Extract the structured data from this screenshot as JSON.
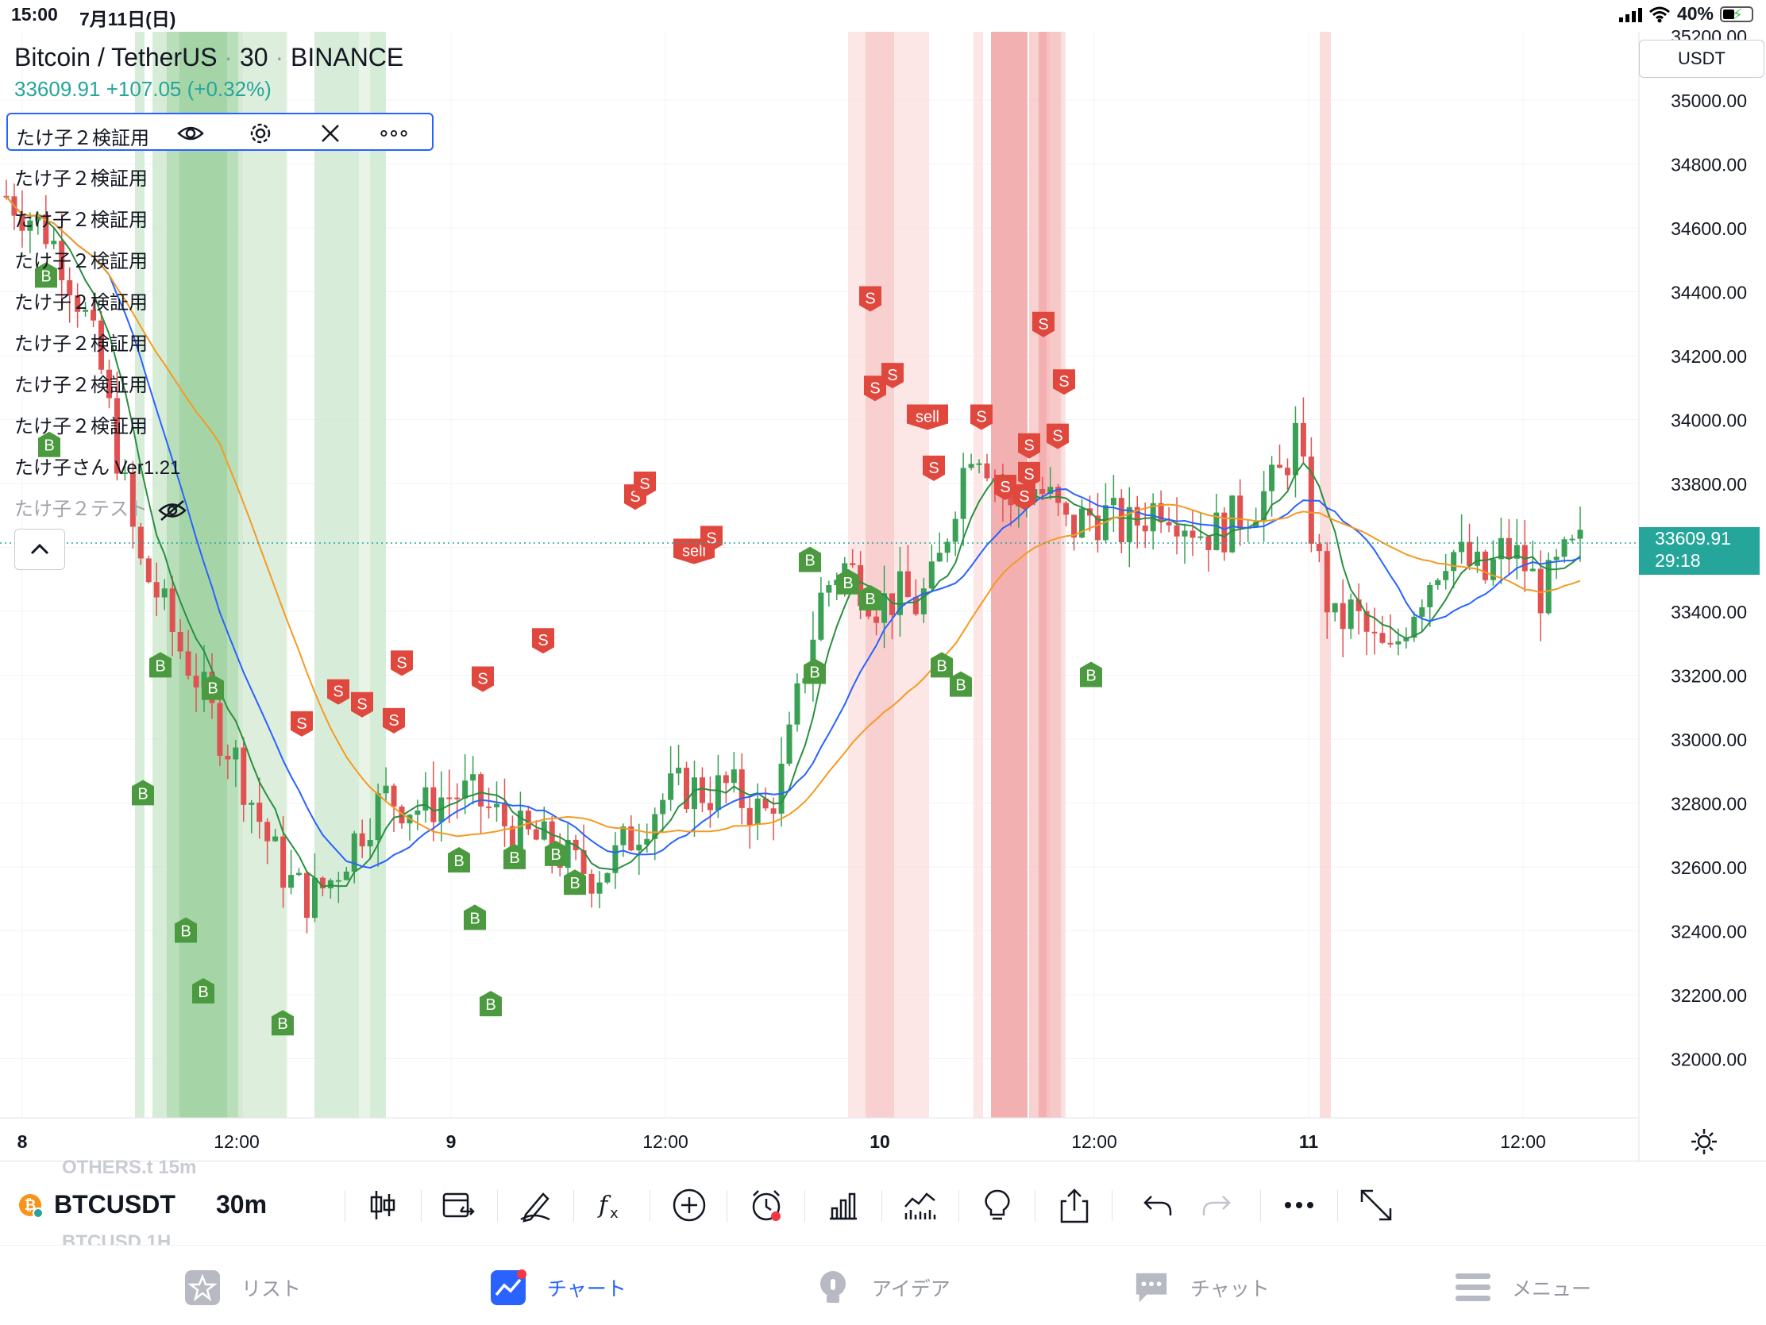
{
  "status_bar": {
    "time": "15:00",
    "date": "7月11日(日)",
    "battery": "40%"
  },
  "symbol_header": {
    "name": "Bitcoin / TetherUS",
    "interval": "30",
    "exchange": "BINANCE",
    "last_price": "33609.91",
    "change": "+107.05 (+0.32%)"
  },
  "indicators": {
    "selected": "たけ子２検証用",
    "rows": [
      "たけ子２検証用",
      "たけ子２検証用",
      "たけ子２検証用",
      "たけ子２検証用",
      "たけ子２検証用",
      "たけ子２検証用",
      "たけ子２検証用",
      "たけ子さん Ver1.21"
    ],
    "hidden_row": "たけ子２テスト"
  },
  "price_scale": {
    "currency": "USDT",
    "top_partial": "35200.00",
    "current_price": "33609.91",
    "countdown": "29:18"
  },
  "colors": {
    "up": "#26a69a",
    "candle_up": "#3aa055",
    "candle_down": "#e05252",
    "buy_bg": "#4c9a40",
    "sell_bg": "#e0473d",
    "ma_fast": "#2a8f3e",
    "ma_mid": "#2962ff",
    "ma_slow": "#f59a23",
    "accent": "#2962ff"
  },
  "toolbar": {
    "symbol": "BTCUSDT",
    "timeframe": "30m",
    "ghost_above": "OTHERS.t 15m",
    "ghost_below": "BTCUSD 1H"
  },
  "tabs": [
    {
      "label": "リスト",
      "icon": "star-icon"
    },
    {
      "label": "チャート",
      "icon": "chart-icon"
    },
    {
      "label": "アイデア",
      "icon": "lightbulb-icon"
    },
    {
      "label": "チャット",
      "icon": "chat-icon"
    },
    {
      "label": "メニュー",
      "icon": "menu-icon"
    }
  ],
  "chart_data": {
    "type": "candlestick",
    "y_range": [
      31900,
      35250
    ],
    "y_ticks": [
      "35000.00",
      "34800.00",
      "34600.00",
      "34400.00",
      "34200.00",
      "34000.00",
      "33800.00",
      "33600.00",
      "33400.00",
      "33200.00",
      "33000.00",
      "32800.00",
      "32600.00",
      "32400.00",
      "32200.00",
      "32000.00"
    ],
    "x_ticks": [
      "8",
      "12:00",
      "9",
      "12:00",
      "10",
      "12:00",
      "11",
      "12:00"
    ],
    "current_price": 33609.91,
    "close_path": [
      34700,
      34650,
      34600,
      34500,
      34350,
      34150,
      33850,
      33550,
      33450,
      33300,
      33200,
      33050,
      32950,
      32800,
      32650,
      32550,
      32500,
      32550,
      32650,
      32750,
      32820,
      32800,
      32780,
      32820,
      32830,
      32800,
      32750,
      32700,
      32680,
      32650,
      32600,
      32580,
      32620,
      32700,
      32780,
      32830,
      32850,
      32830,
      32850,
      32800,
      32760,
      32900,
      33200,
      33450,
      33550,
      33500,
      33420,
      33450,
      33420,
      33500,
      33750,
      33950,
      33850,
      33700,
      33800,
      33750,
      33650,
      33700,
      33700,
      33650,
      33700,
      33750,
      33700,
      33650,
      33650,
      33700,
      33750,
      33800,
      33950,
      33600,
      33350,
      33400,
      33300,
      33250,
      33400,
      33500,
      33600,
      33550,
      33500,
      33600,
      33550,
      33450,
      33550,
      33600
    ],
    "signals": [
      {
        "label": "B",
        "price": 34450
      },
      {
        "label": "B",
        "price": 33920
      },
      {
        "label": "B",
        "price": 33230
      },
      {
        "label": "B",
        "price": 33160
      },
      {
        "label": "B",
        "price": 32830
      },
      {
        "label": "B",
        "price": 32400
      },
      {
        "label": "B",
        "price": 32210
      },
      {
        "label": "B",
        "price": 32110
      },
      {
        "label": "S",
        "price": 33050
      },
      {
        "label": "S",
        "price": 33150
      },
      {
        "label": "S",
        "price": 33110
      },
      {
        "label": "S",
        "price": 33060
      },
      {
        "label": "S",
        "price": 33240
      },
      {
        "label": "B",
        "price": 32620
      },
      {
        "label": "S",
        "price": 33190
      },
      {
        "label": "B",
        "price": 32440
      },
      {
        "label": "B",
        "price": 32170
      },
      {
        "label": "S",
        "price": 33310
      },
      {
        "label": "B",
        "price": 32630
      },
      {
        "label": "B",
        "price": 32640
      },
      {
        "label": "B",
        "price": 32550
      },
      {
        "label": "S",
        "price": 33760
      },
      {
        "label": "S",
        "price": 33800
      },
      {
        "label": "sell",
        "price": 33590
      },
      {
        "label": "S",
        "price": 33630
      },
      {
        "label": "B",
        "price": 33210
      },
      {
        "label": "S",
        "price": 34380
      },
      {
        "label": "S",
        "price": 34100
      },
      {
        "label": "S",
        "price": 34140
      },
      {
        "label": "sell",
        "price": 34010
      },
      {
        "label": "B",
        "price": 33560
      },
      {
        "label": "B",
        "price": 33490
      },
      {
        "label": "S",
        "price": 33850
      },
      {
        "label": "S",
        "price": 34010
      },
      {
        "label": "S",
        "price": 33920
      },
      {
        "label": "B",
        "price": 33440
      },
      {
        "label": "S",
        "price": 33950
      },
      {
        "label": "S",
        "price": 34300
      },
      {
        "label": "S",
        "price": 34120
      },
      {
        "label": "B",
        "price": 33230
      },
      {
        "label": "B",
        "price": 33170
      },
      {
        "label": "S",
        "price": 33790
      },
      {
        "label": "S",
        "price": 33760
      },
      {
        "label": "S",
        "price": 33830
      },
      {
        "label": "B",
        "price": 33200
      }
    ]
  }
}
